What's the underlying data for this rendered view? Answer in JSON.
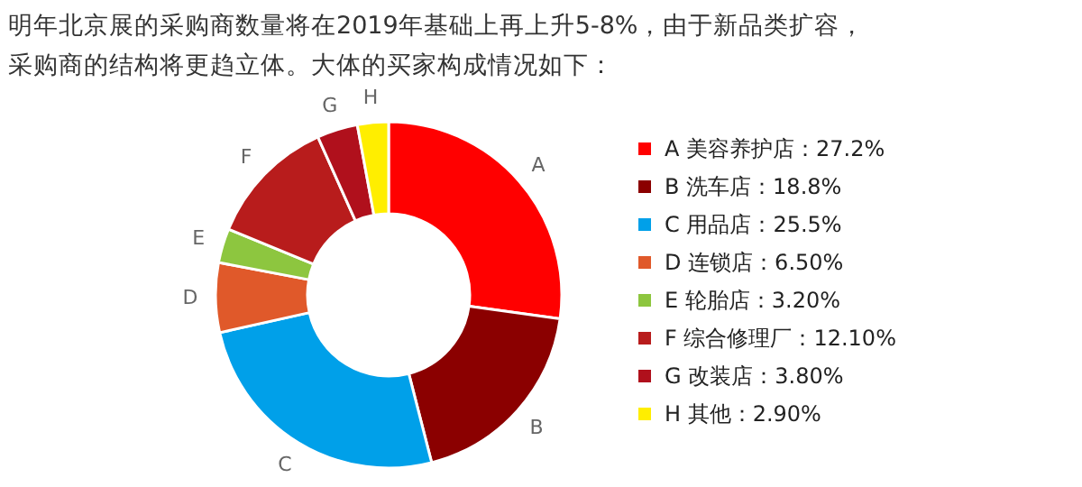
{
  "chart_data": {
    "type": "donut",
    "title": "明年北京展的采购商数量将在2019年基础上再上升5-8%，由于新品类扩容，采购商的结构将更趋立体。大体的买家构成情况如下：",
    "categories": [
      "A 美容养护店：27.2%",
      "B 洗车店：18.8%",
      "C 用品店：25.5%",
      "D 连锁店：6.50%",
      "E 轮胎店：3.20%",
      "F 综合修理厂：12.10%",
      "G 改装店：3.80%",
      "H 其他：2.90%"
    ],
    "values": [
      27.2,
      18.8,
      25.5,
      6.5,
      3.2,
      12.1,
      3.8,
      2.9
    ],
    "colors": [
      "#ff0000",
      "#8b0000",
      "#00a0e9",
      "#e0592a",
      "#8dc63f",
      "#b81c1c",
      "#b0101c",
      "#ffee00"
    ],
    "annotations": [
      "A",
      "B",
      "C",
      "D",
      "E",
      "F",
      "G",
      "H"
    ],
    "legend": "right"
  }
}
